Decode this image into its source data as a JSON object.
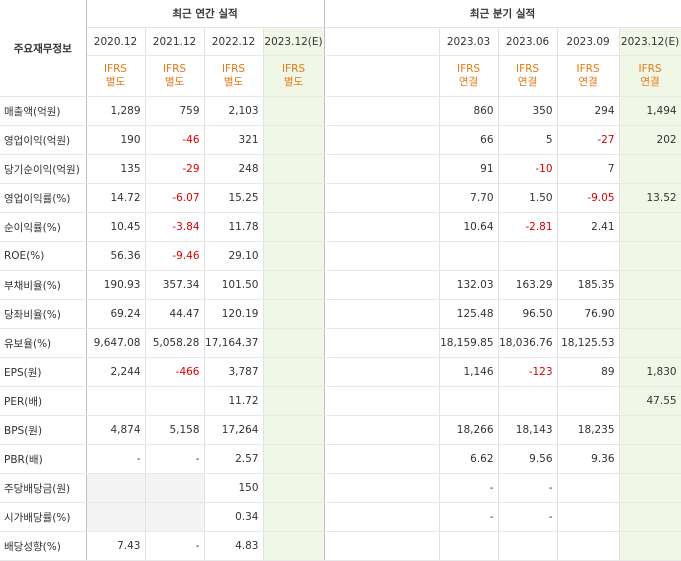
{
  "header": {
    "corner_label": "주요재무정보",
    "annual_title": "최근 연간 실적",
    "quarterly_title": "최근 분기 실적",
    "annual_periods": [
      "2020.12",
      "2021.12",
      "2022.12",
      "2023.12(E)"
    ],
    "quarterly_periods": [
      "2023.03",
      "2023.06",
      "2023.09",
      "2023.12(E)"
    ],
    "annual_types": [
      [
        "IFRS",
        "별도"
      ],
      [
        "IFRS",
        "별도"
      ],
      [
        "IFRS",
        "별도"
      ],
      [
        "IFRS",
        "별도"
      ]
    ],
    "quarterly_types": [
      [
        "IFRS",
        "연결"
      ],
      [
        "IFRS",
        "연결"
      ],
      [
        "IFRS",
        "연결"
      ],
      [
        "IFRS",
        "연결"
      ]
    ]
  },
  "rows": [
    {
      "label": "매출액(억원)",
      "annual": [
        "1,289",
        "759",
        "2,103",
        ""
      ],
      "quarterly": [
        "860",
        "350",
        "294",
        "1,494"
      ]
    },
    {
      "label": "영업이익(억원)",
      "annual": [
        "190",
        "-46",
        "321",
        ""
      ],
      "quarterly": [
        "66",
        "5",
        "-27",
        "202"
      ]
    },
    {
      "label": "당기순이익(억원)",
      "annual": [
        "135",
        "-29",
        "248",
        ""
      ],
      "quarterly": [
        "91",
        "-10",
        "7",
        ""
      ]
    },
    {
      "label": "영업이익률(%)",
      "annual": [
        "14.72",
        "-6.07",
        "15.25",
        ""
      ],
      "quarterly": [
        "7.70",
        "1.50",
        "-9.05",
        "13.52"
      ]
    },
    {
      "label": "순이익률(%)",
      "annual": [
        "10.45",
        "-3.84",
        "11.78",
        ""
      ],
      "quarterly": [
        "10.64",
        "-2.81",
        "2.41",
        ""
      ]
    },
    {
      "label": "ROE(%)",
      "annual": [
        "56.36",
        "-9.46",
        "29.10",
        ""
      ],
      "quarterly": [
        "",
        "",
        "",
        ""
      ]
    },
    {
      "label": "부채비율(%)",
      "annual": [
        "190.93",
        "357.34",
        "101.50",
        ""
      ],
      "quarterly": [
        "132.03",
        "163.29",
        "185.35",
        ""
      ]
    },
    {
      "label": "당좌비율(%)",
      "annual": [
        "69.24",
        "44.47",
        "120.19",
        ""
      ],
      "quarterly": [
        "125.48",
        "96.50",
        "76.90",
        ""
      ]
    },
    {
      "label": "유보율(%)",
      "annual": [
        "9,647.08",
        "5,058.28",
        "17,164.37",
        ""
      ],
      "quarterly": [
        "18,159.85",
        "18,036.76",
        "18,125.53",
        ""
      ]
    },
    {
      "label": "EPS(원)",
      "annual": [
        "2,244",
        "-466",
        "3,787",
        ""
      ],
      "quarterly": [
        "1,146",
        "-123",
        "89",
        "1,830"
      ]
    },
    {
      "label": "PER(배)",
      "annual": [
        "",
        "",
        "11.72",
        ""
      ],
      "quarterly": [
        "",
        "",
        "",
        "47.55"
      ]
    },
    {
      "label": "BPS(원)",
      "annual": [
        "4,874",
        "5,158",
        "17,264",
        ""
      ],
      "quarterly": [
        "18,266",
        "18,143",
        "18,235",
        ""
      ]
    },
    {
      "label": "PBR(배)",
      "annual": [
        "-",
        "-",
        "2.57",
        ""
      ],
      "quarterly": [
        "6.62",
        "9.56",
        "9.36",
        ""
      ]
    },
    {
      "label": "주당배당금(원)",
      "annual": [
        "",
        "",
        "150",
        ""
      ],
      "quarterly": [
        "-",
        "-",
        "",
        ""
      ]
    },
    {
      "label": "시가배당률(%)",
      "annual": [
        "",
        "",
        "0.34",
        ""
      ],
      "quarterly": [
        "-",
        "-",
        "",
        ""
      ]
    },
    {
      "label": "배당성향(%)",
      "annual": [
        "7.43",
        "-",
        "4.83",
        ""
      ],
      "quarterly": [
        "",
        "",
        "",
        ""
      ]
    }
  ],
  "section_starts": [
    3,
    6,
    9,
    13
  ],
  "gray_rows_annual": [
    13,
    14,
    15
  ],
  "colors": {
    "ifrs": "#e67817",
    "negative": "#dc0000",
    "estimate_bg": "#f1f7e6"
  }
}
